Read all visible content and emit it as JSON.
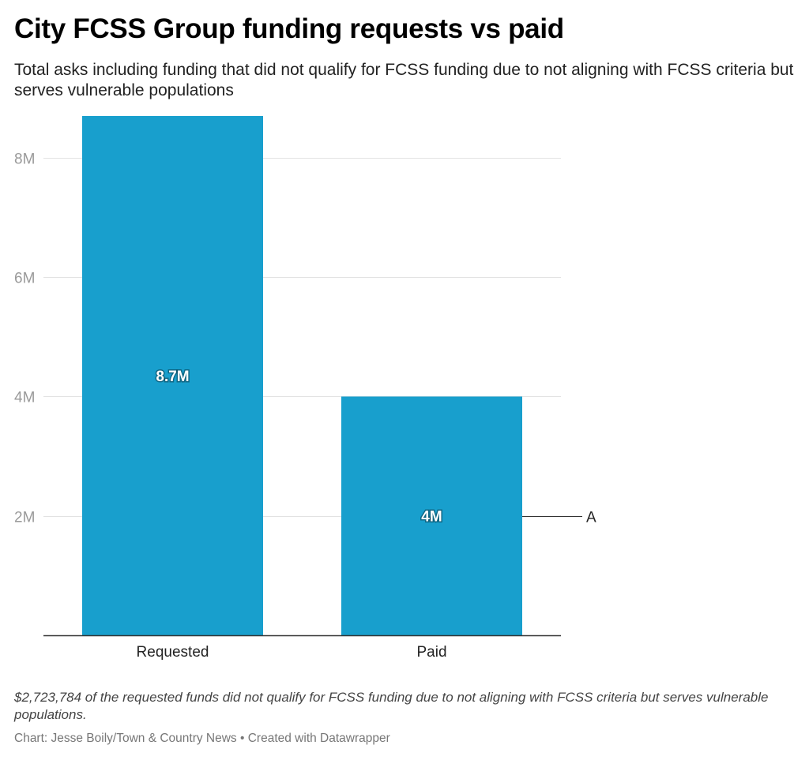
{
  "title": "City FCSS Group funding requests vs paid",
  "subtitle": "Total asks including funding that did not qualify for FCSS funding due to not aligning with FCSS criteria but serves vulnerable populations",
  "notes": "$2,723,784 of the requested funds did not qualify for FCSS funding due to not aligning with FCSS criteria but serves vulnerable populations.",
  "credit": "Chart: Jesse Boily/Town & Country News • Created with Datawrapper",
  "colors": {
    "bar": "#189fcd",
    "grid": "#e2e2e2",
    "axis": "#333333",
    "tick_text": "#9a9a9a"
  },
  "chart_data": {
    "type": "bar",
    "categories": [
      "Requested",
      "Paid"
    ],
    "values": [
      8700000,
      4000000
    ],
    "data_labels": [
      "8.7M",
      "4M"
    ],
    "yticks": [
      2000000,
      4000000,
      6000000,
      8000000
    ],
    "ytick_labels": [
      "2M",
      "4M",
      "6M",
      "8M"
    ],
    "ylim": [
      0,
      8700000
    ],
    "grid": true,
    "annotations": [
      {
        "label": "A",
        "y": 2000000
      }
    ]
  }
}
